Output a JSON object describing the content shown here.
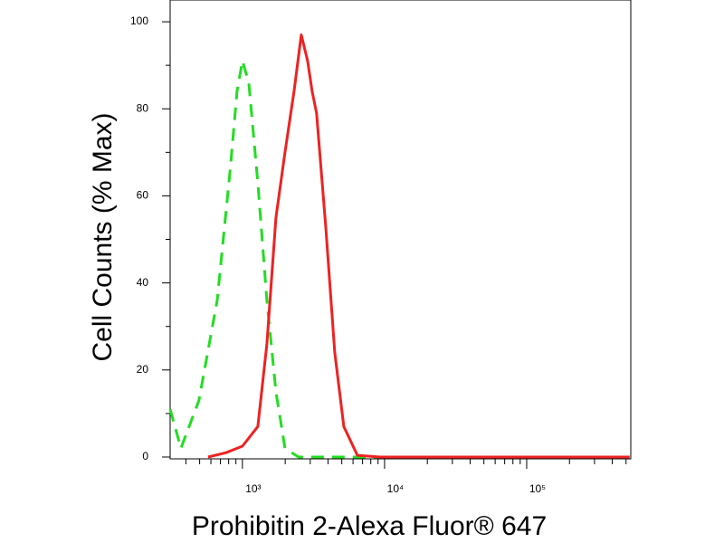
{
  "chart_data": {
    "type": "line",
    "xlabel": "Prohibitin 2-Alexa Fluor® 647",
    "ylabel": "Cell Counts (% Max)",
    "xscale": "log",
    "xlim": [
      310,
      540000
    ],
    "ylim": [
      0,
      105
    ],
    "xticks": [
      {
        "value": 1000,
        "label": "10³"
      },
      {
        "value": 10000,
        "label": "10⁴"
      },
      {
        "value": 100000,
        "label": "10⁵"
      }
    ],
    "xminorticks": [
      400,
      500,
      600,
      700,
      800,
      900,
      2000,
      3000,
      4000,
      5000,
      6000,
      7000,
      8000,
      9000,
      20000,
      30000,
      40000,
      50000,
      60000,
      70000,
      80000,
      90000,
      200000,
      300000,
      400000,
      500000
    ],
    "yticks": [
      0,
      20,
      40,
      60,
      80,
      100
    ],
    "yminorticks": [
      10,
      30,
      50,
      70,
      90
    ],
    "series": [
      {
        "color": "#22dd22",
        "dash": true,
        "x": [
          310,
          369,
          494,
          664,
          826,
          916,
          1000,
          1108,
          1283,
          1486,
          1721,
          1992,
          2483,
          530000
        ],
        "values": [
          11,
          2,
          13,
          36,
          67,
          84,
          91,
          86,
          63,
          36,
          15,
          2,
          0,
          0
        ]
      },
      {
        "color": "#ee2222",
        "dash": false,
        "x": [
          573,
          767,
          1000,
          1283,
          1486,
          1721,
          1992,
          2306,
          2594,
          2876,
          3093,
          3326,
          3853,
          4464,
          5166,
          6436,
          9290,
          530000
        ],
        "values": [
          0,
          1,
          2.5,
          7,
          26,
          55,
          70,
          84,
          97,
          91,
          84,
          79,
          53,
          24,
          7,
          0.4,
          0,
          0
        ]
      }
    ]
  }
}
